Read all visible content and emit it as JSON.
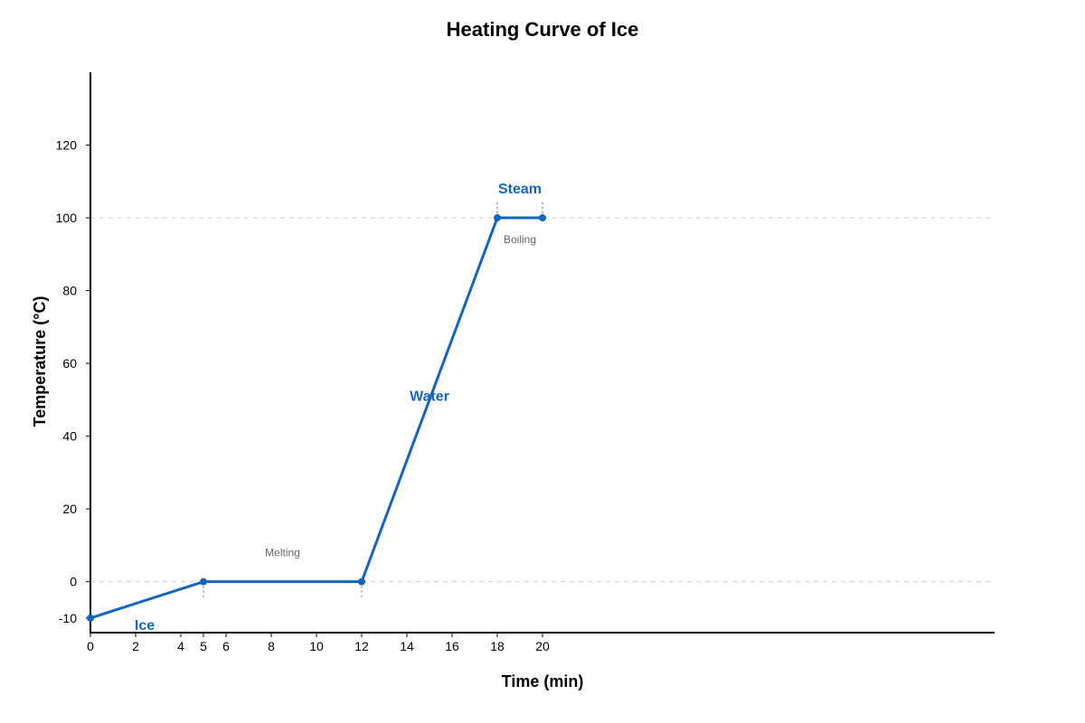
{
  "chart_data": {
    "type": "line",
    "title": "Heating Curve of Ice",
    "xlabel": "Time (min)",
    "ylabel": "Temperature (°C)",
    "xlim": [
      0,
      40
    ],
    "ylim": [
      -14,
      140
    ],
    "x_ticks": [
      0,
      2,
      4,
      5,
      6,
      8,
      10,
      12,
      14,
      16,
      18,
      20
    ],
    "y_ticks": [
      -10,
      0,
      20,
      40,
      60,
      80,
      100,
      120
    ],
    "reference_lines": [
      0,
      100
    ],
    "grid": false,
    "series": [
      {
        "color": "#1565c0",
        "points": [
          {
            "x": 0,
            "y": -10
          },
          {
            "x": 5,
            "y": 0
          },
          {
            "x": 12,
            "y": 0
          },
          {
            "x": 18,
            "y": 100
          },
          {
            "x": 20,
            "y": 100
          }
        ]
      }
    ],
    "phase_labels": [
      {
        "text": "Ice",
        "x": 2.4,
        "y": -12
      },
      {
        "text": "Water",
        "x": 15,
        "y": 51
      },
      {
        "text": "Steam",
        "x": 19,
        "y": 108
      }
    ],
    "transition_labels": [
      {
        "text": "Melting",
        "x": 8.5,
        "y": 8
      },
      {
        "text": "Boiling",
        "x": 19,
        "y": 94
      }
    ],
    "colors": {
      "line": "#1565c0",
      "phase_text": "#1565c0",
      "transition_text": "#666666",
      "reference_line": "#cccccc",
      "marker_line": "#999999"
    }
  }
}
